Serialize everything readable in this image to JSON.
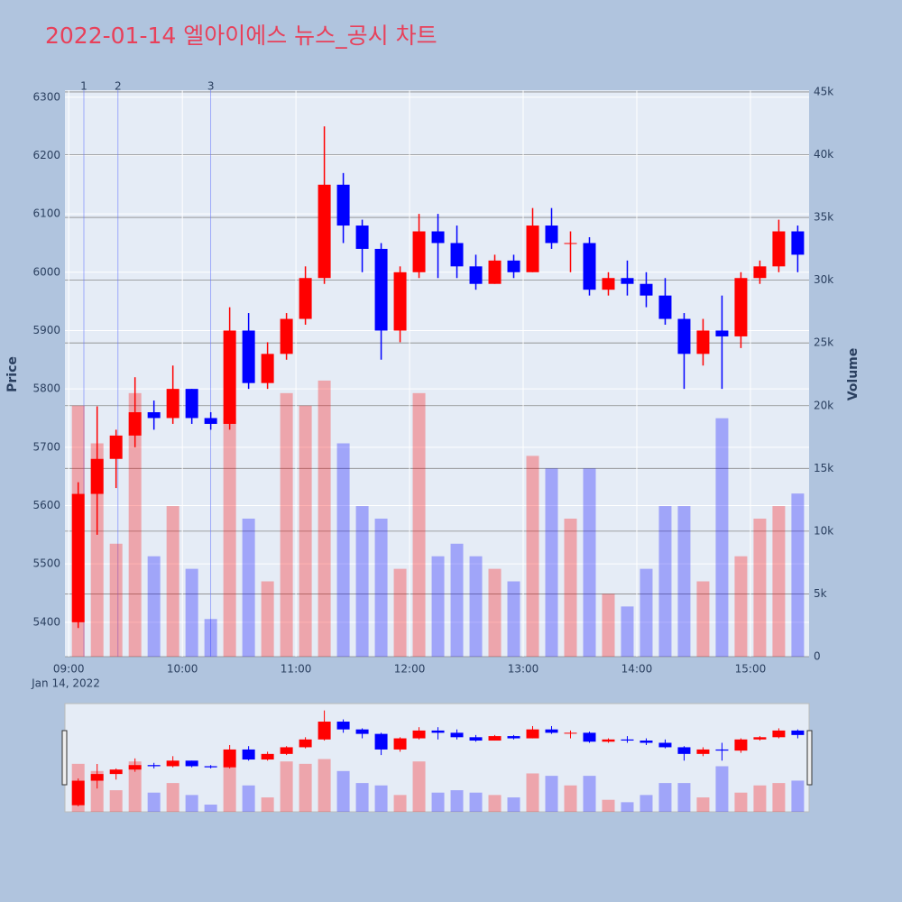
{
  "chart_data": {
    "type": "candlestick",
    "title": "2022-01-14 엘아이에스 뉴스_공시 차트",
    "y_axis_label": "Price",
    "y2_axis_label": "Volume",
    "x_date_label": "Jan 14, 2022",
    "x": [
      "09:00",
      "09:10",
      "09:20",
      "09:30",
      "09:40",
      "09:50",
      "10:00",
      "10:10",
      "10:20",
      "10:30",
      "10:40",
      "10:50",
      "11:00",
      "11:10",
      "11:20",
      "11:30",
      "11:40",
      "11:50",
      "12:00",
      "12:10",
      "12:20",
      "12:30",
      "12:40",
      "12:50",
      "13:00",
      "13:10",
      "13:20",
      "13:30",
      "13:40",
      "13:50",
      "14:00",
      "14:10",
      "14:20",
      "14:30",
      "14:40",
      "14:50",
      "15:00",
      "15:10",
      "15:20"
    ],
    "open": [
      5400,
      5620,
      5680,
      5720,
      5760,
      5750,
      5800,
      5750,
      5740,
      5900,
      5810,
      5860,
      5920,
      5990,
      6150,
      6080,
      6040,
      5900,
      6000,
      6070,
      6050,
      6010,
      5980,
      6020,
      6000,
      6080,
      6050,
      6050,
      5970,
      5990,
      5980,
      5960,
      5920,
      5860,
      5900,
      5890,
      5990,
      6010,
      6070
    ],
    "high": [
      5640,
      5770,
      5730,
      5820,
      5780,
      5840,
      5800,
      5760,
      5940,
      5930,
      5880,
      5930,
      6010,
      6250,
      6170,
      6090,
      6050,
      6010,
      6100,
      6100,
      6080,
      6030,
      6030,
      6030,
      6110,
      6110,
      6070,
      6060,
      6000,
      6020,
      6000,
      5990,
      5930,
      5920,
      5960,
      6000,
      6020,
      6090,
      6080
    ],
    "low": [
      5390,
      5550,
      5630,
      5700,
      5730,
      5740,
      5740,
      5730,
      5730,
      5800,
      5800,
      5850,
      5910,
      5980,
      6050,
      6000,
      5850,
      5880,
      5990,
      5990,
      5990,
      5970,
      5980,
      5990,
      6000,
      6040,
      6000,
      5960,
      5960,
      5960,
      5940,
      5910,
      5800,
      5840,
      5800,
      5870,
      5980,
      6000,
      6000
    ],
    "close": [
      5620,
      5680,
      5720,
      5760,
      5750,
      5800,
      5750,
      5740,
      5900,
      5810,
      5860,
      5920,
      5990,
      6150,
      6080,
      6040,
      5900,
      6000,
      6070,
      6050,
      6010,
      5980,
      6020,
      6000,
      6080,
      6050,
      6050,
      5970,
      5990,
      5980,
      5960,
      5920,
      5860,
      5900,
      5890,
      5990,
      6010,
      6070,
      6030
    ],
    "volume": [
      20000,
      17000,
      9000,
      21000,
      8000,
      12000,
      7000,
      3000,
      19000,
      11000,
      6000,
      21000,
      20000,
      22000,
      17000,
      12000,
      11000,
      7000,
      21000,
      8000,
      9000,
      8000,
      7000,
      6000,
      16000,
      15000,
      11000,
      15000,
      5000,
      4000,
      7000,
      12000,
      12000,
      6000,
      19000,
      8000,
      11000,
      12000,
      13000
    ],
    "up_color": "#ff0000",
    "down_color": "#0000ff",
    "ylim": [
      5341,
      6312
    ],
    "yticks": [
      5400,
      5500,
      5600,
      5700,
      5800,
      5900,
      6000,
      6100,
      6200,
      6300
    ],
    "y2lim": [
      0,
      45140
    ],
    "y2ticks": [
      0,
      {
        "value": 5000,
        "label": "5k"
      },
      {
        "value": 10000,
        "label": "10k"
      },
      {
        "value": 15000,
        "label": "15k"
      },
      {
        "value": 20000,
        "label": "20k"
      },
      {
        "value": 25000,
        "label": "25k"
      },
      {
        "value": 30000,
        "label": "30k"
      },
      {
        "value": 35000,
        "label": "35k"
      },
      {
        "value": 40000,
        "label": "40k"
      },
      {
        "value": 45000,
        "label": "45k"
      }
    ],
    "xlim": [
      "08:58",
      "15:31"
    ],
    "xticks": [
      "09:00",
      "10:00",
      "11:00",
      "12:00",
      "13:00",
      "14:00",
      "15:00"
    ],
    "annotations": [
      {
        "label": "1",
        "x": "09:08"
      },
      {
        "label": "2",
        "x": "09:26"
      },
      {
        "label": "3",
        "x": "10:15"
      }
    ],
    "grid": true
  }
}
